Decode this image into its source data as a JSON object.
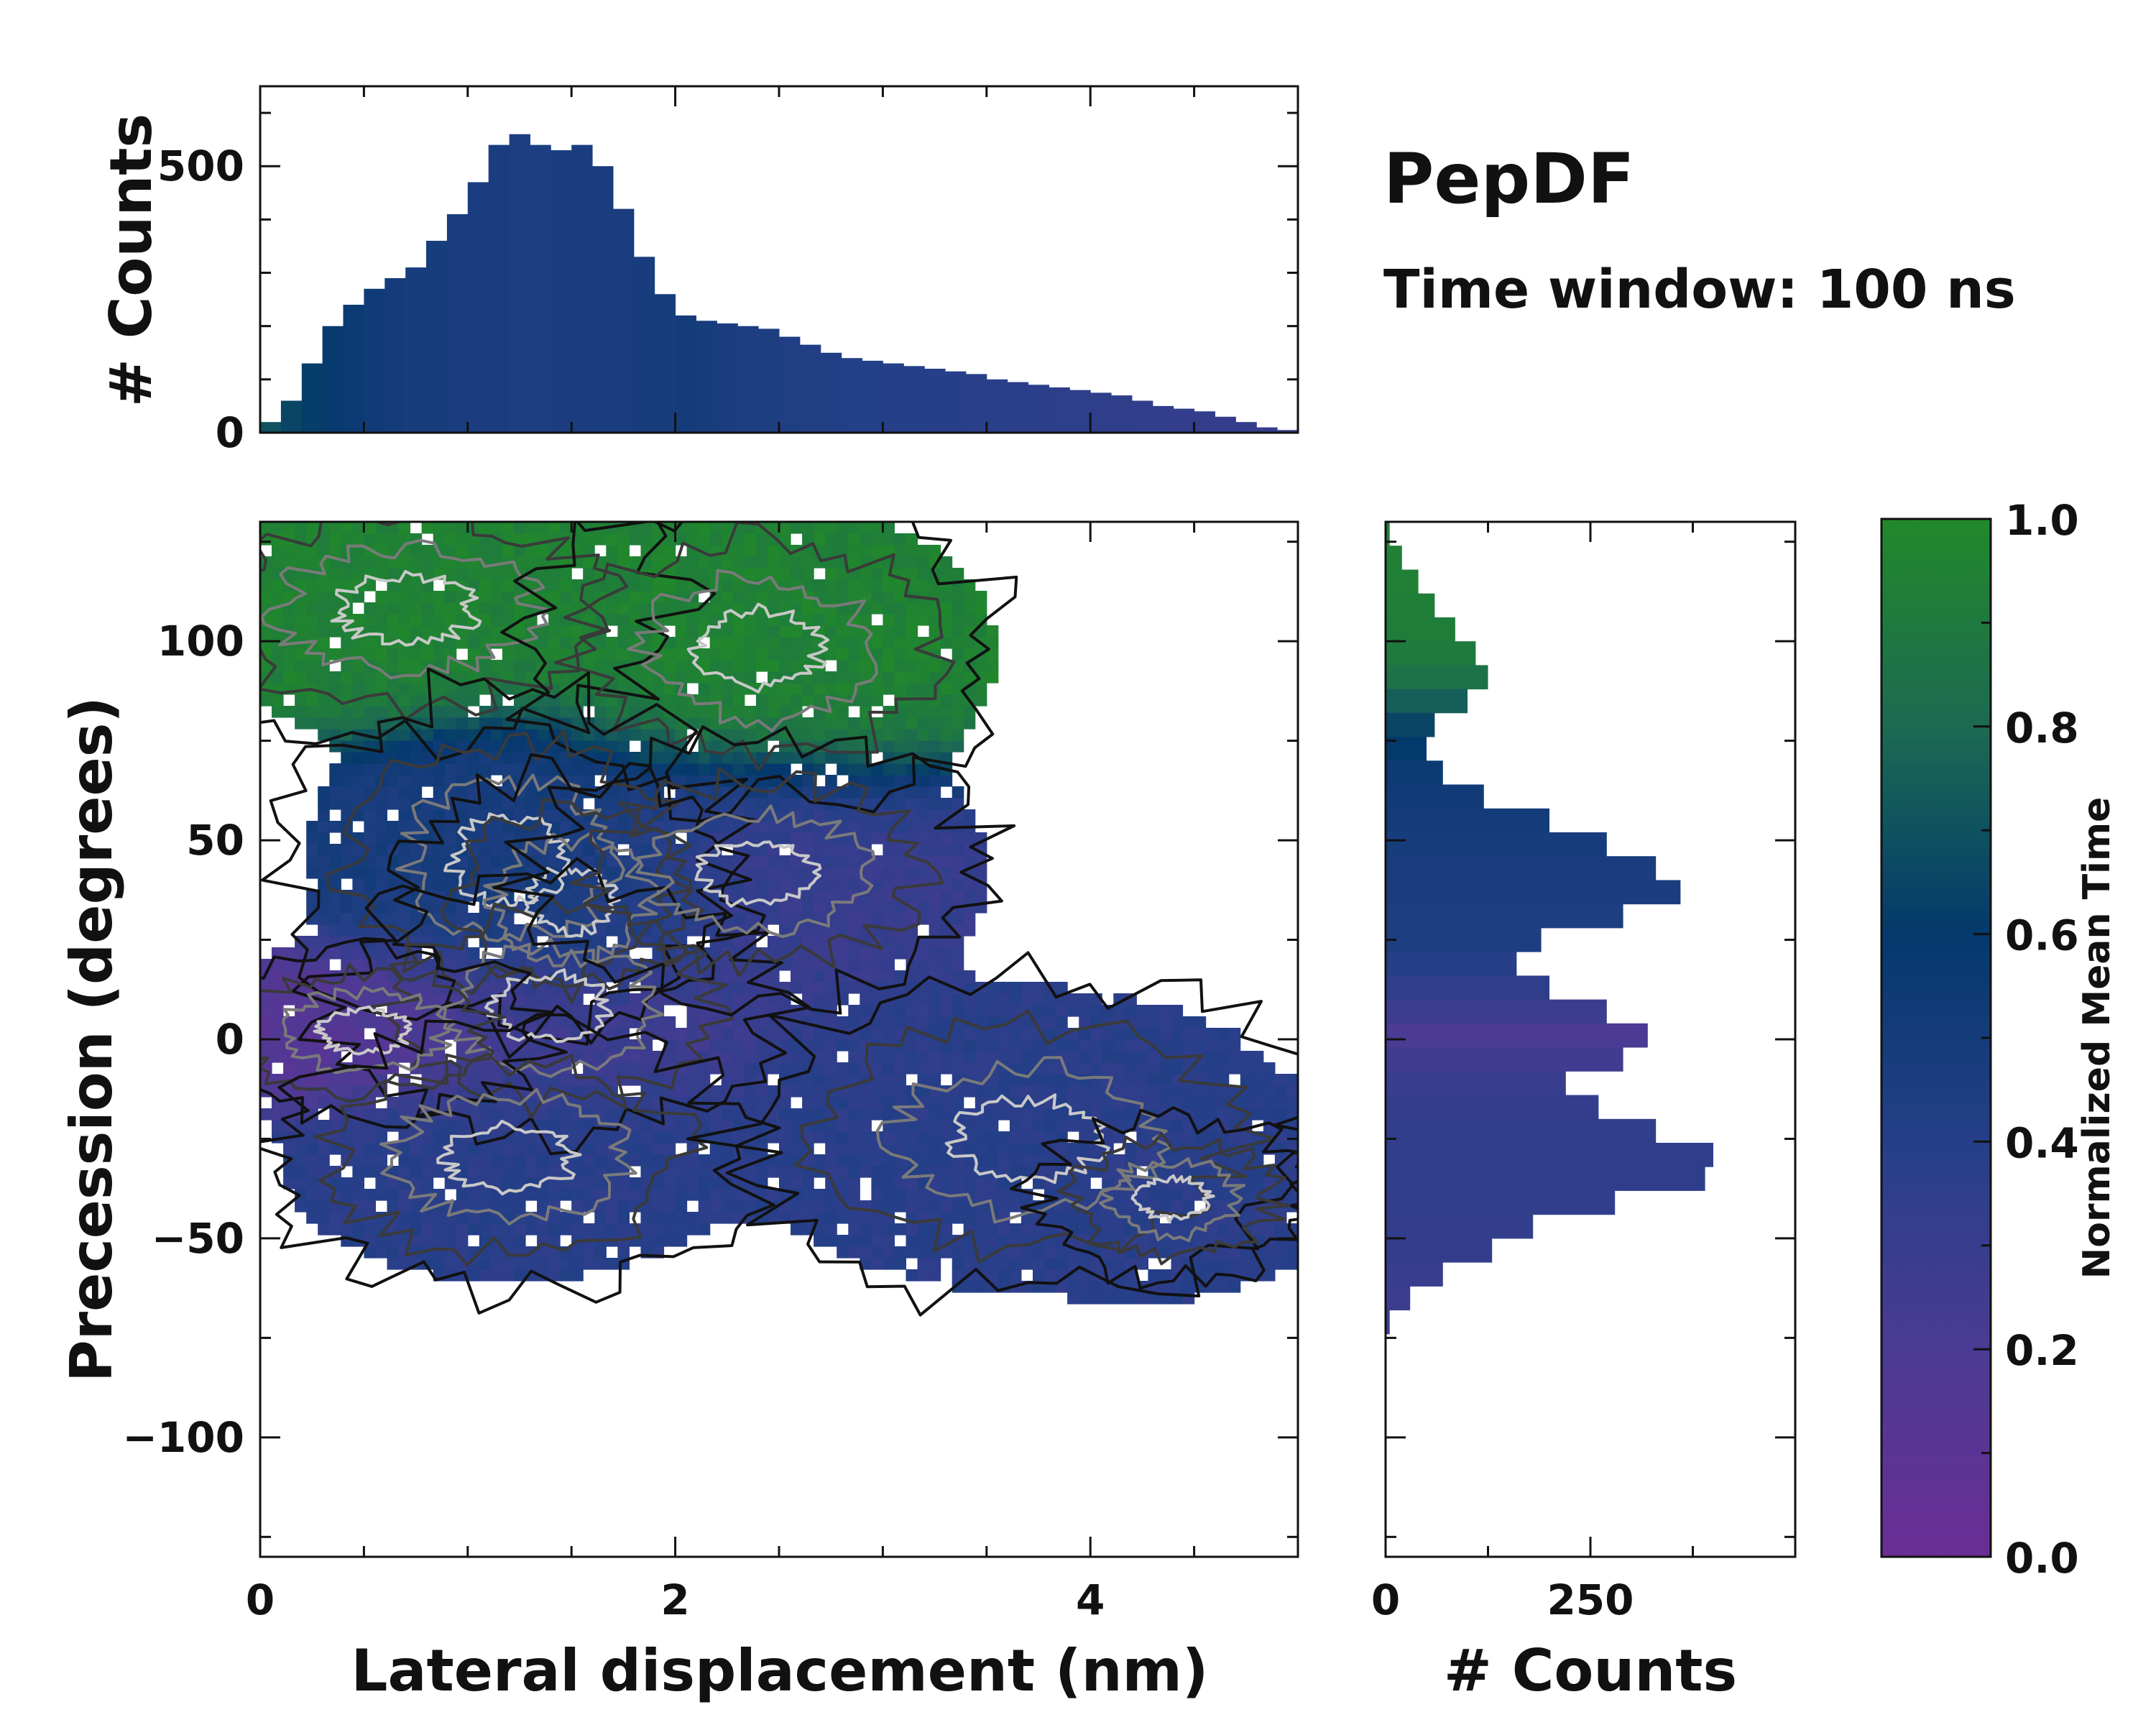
{
  "chart_data": {
    "type": "heatmap",
    "title": "PepDF",
    "subtitle": "Time window: 100 ns",
    "xlabel": "Lateral displacement (nm)",
    "ylabel": "Precession (degrees)",
    "xlim": [
      0,
      5
    ],
    "ylim": [
      -130,
      130
    ],
    "xticks": [
      0,
      2,
      4
    ],
    "xtick_labels": [
      "0",
      "2",
      "4"
    ],
    "yticks": [
      -100,
      -50,
      0,
      50,
      100
    ],
    "ytick_labels": [
      "−100",
      "−50",
      "0",
      "50",
      "100"
    ],
    "colorbar": {
      "label": "Normalized Mean Time",
      "range": [
        0,
        1
      ],
      "ticks": [
        0,
        0.2,
        0.4,
        0.6,
        0.8,
        1.0
      ],
      "tick_labels": [
        "0.0",
        "0.2",
        "0.4",
        "0.6",
        "0.8",
        "1.0"
      ],
      "colors": [
        "#6a2d96",
        "#4b3b94",
        "#253f88",
        "#04396c",
        "#1c6a52",
        "#21892a"
      ]
    },
    "top_histogram": {
      "ylabel": "# Counts",
      "ylim": [
        0,
        650
      ],
      "yticks": [
        0,
        500
      ],
      "ytick_labels": [
        "0",
        "500"
      ],
      "x": [
        0.05,
        0.15,
        0.25,
        0.35,
        0.45,
        0.55,
        0.65,
        0.75,
        0.85,
        0.95,
        1.05,
        1.15,
        1.25,
        1.35,
        1.45,
        1.55,
        1.65,
        1.75,
        1.85,
        1.95,
        2.05,
        2.15,
        2.25,
        2.35,
        2.45,
        2.55,
        2.65,
        2.75,
        2.85,
        2.95,
        3.05,
        3.15,
        3.25,
        3.35,
        3.45,
        3.55,
        3.65,
        3.75,
        3.85,
        3.95,
        4.05,
        4.15,
        4.25,
        4.35,
        4.45,
        4.55,
        4.65,
        4.75,
        4.85,
        4.95
      ],
      "values": [
        20,
        60,
        130,
        200,
        240,
        270,
        290,
        310,
        360,
        410,
        470,
        540,
        560,
        540,
        530,
        540,
        500,
        420,
        330,
        260,
        220,
        210,
        205,
        200,
        195,
        180,
        165,
        150,
        140,
        135,
        130,
        125,
        120,
        115,
        110,
        100,
        95,
        90,
        85,
        80,
        75,
        70,
        60,
        50,
        45,
        40,
        30,
        20,
        10,
        5
      ],
      "time_color": [
        0.7,
        0.65,
        0.62,
        0.58,
        0.55,
        0.52,
        0.5,
        0.48,
        0.48,
        0.47,
        0.46,
        0.46,
        0.45,
        0.45,
        0.46,
        0.46,
        0.47,
        0.47,
        0.48,
        0.48,
        0.5,
        0.48,
        0.46,
        0.45,
        0.44,
        0.43,
        0.42,
        0.42,
        0.41,
        0.41,
        0.4,
        0.4,
        0.39,
        0.39,
        0.38,
        0.38,
        0.37,
        0.37,
        0.36,
        0.36,
        0.35,
        0.35,
        0.34,
        0.34,
        0.33,
        0.33,
        0.32,
        0.32,
        0.31,
        0.31
      ]
    },
    "right_histogram": {
      "xlabel": "# Counts",
      "xlim": [
        0,
        500
      ],
      "xticks": [
        0,
        250
      ],
      "xtick_labels": [
        "0",
        "250"
      ],
      "y": [
        127,
        121,
        115,
        109,
        103,
        97,
        91,
        85,
        79,
        73,
        67,
        61,
        55,
        49,
        43,
        37,
        31,
        25,
        19,
        13,
        7,
        1,
        -5,
        -11,
        -17,
        -23,
        -29,
        -35,
        -41,
        -47,
        -53,
        -59,
        -65,
        -71
      ],
      "values": [
        5,
        20,
        40,
        60,
        85,
        110,
        125,
        100,
        60,
        50,
        70,
        120,
        200,
        270,
        330,
        360,
        290,
        190,
        160,
        200,
        270,
        320,
        290,
        220,
        260,
        330,
        400,
        390,
        280,
        180,
        130,
        70,
        30,
        5
      ],
      "time_color": [
        0.95,
        0.95,
        0.94,
        0.93,
        0.92,
        0.9,
        0.85,
        0.75,
        0.65,
        0.6,
        0.55,
        0.52,
        0.5,
        0.48,
        0.47,
        0.46,
        0.45,
        0.44,
        0.4,
        0.35,
        0.28,
        0.2,
        0.25,
        0.3,
        0.33,
        0.34,
        0.35,
        0.35,
        0.34,
        0.33,
        0.32,
        0.3,
        0.28,
        0.27
      ]
    },
    "density_regions": [
      {
        "x": 0.7,
        "y": 108,
        "sx": 0.55,
        "sy": 14,
        "w": 1.0,
        "t": 0.95
      },
      {
        "x": 2.4,
        "y": 98,
        "sx": 0.55,
        "sy": 18,
        "w": 0.8,
        "t": 0.95
      },
      {
        "x": 1.2,
        "y": 45,
        "sx": 0.45,
        "sy": 18,
        "w": 1.0,
        "t": 0.48
      },
      {
        "x": 1.5,
        "y": 35,
        "sx": 0.35,
        "sy": 14,
        "w": 0.9,
        "t": 0.5
      },
      {
        "x": 1.4,
        "y": 8,
        "sx": 0.45,
        "sy": 14,
        "w": 1.0,
        "t": 0.25
      },
      {
        "x": 0.5,
        "y": 2,
        "sx": 0.4,
        "sy": 10,
        "w": 0.8,
        "t": 0.12
      },
      {
        "x": 1.2,
        "y": -30,
        "sx": 0.5,
        "sy": 14,
        "w": 1.0,
        "t": 0.38
      },
      {
        "x": 2.4,
        "y": 42,
        "sx": 0.55,
        "sy": 16,
        "w": 0.7,
        "t": 0.3
      },
      {
        "x": 3.7,
        "y": -25,
        "sx": 0.65,
        "sy": 18,
        "w": 0.85,
        "t": 0.38
      },
      {
        "x": 4.4,
        "y": -40,
        "sx": 0.4,
        "sy": 12,
        "w": 0.5,
        "t": 0.37
      }
    ]
  }
}
